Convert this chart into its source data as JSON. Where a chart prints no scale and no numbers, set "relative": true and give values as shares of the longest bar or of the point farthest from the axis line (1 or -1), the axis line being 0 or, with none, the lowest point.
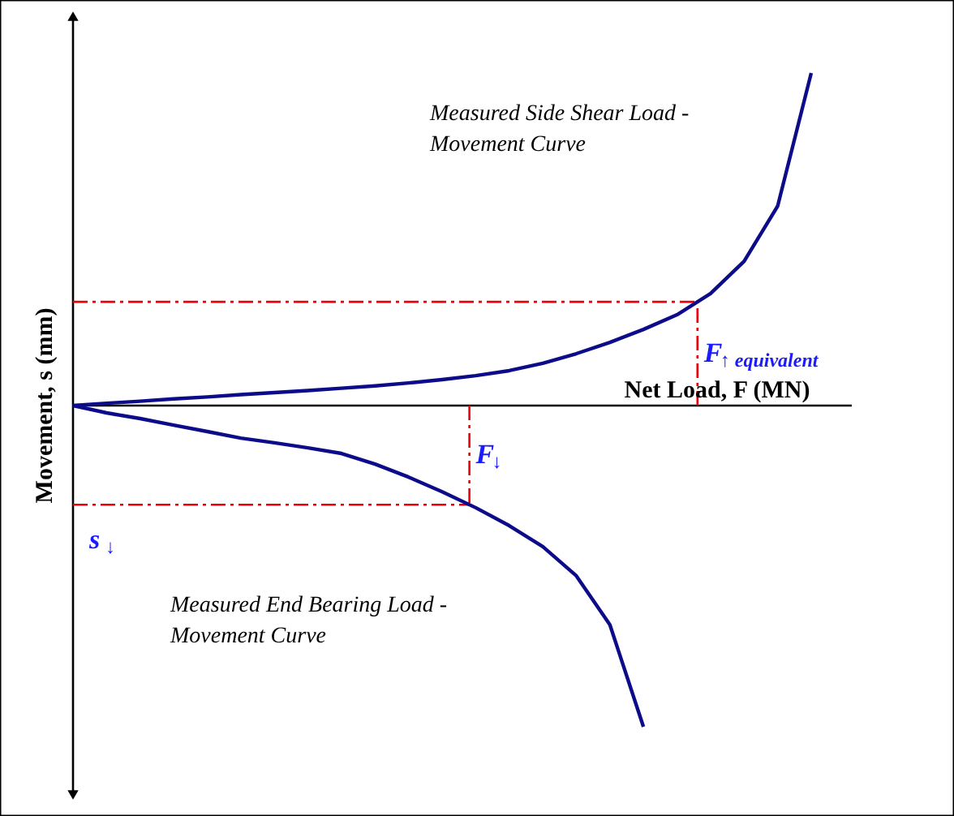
{
  "chart_data": {
    "type": "line",
    "relative": true,
    "xlabel": "Net Load, F (MN)",
    "ylabel": "Movement, s (mm)",
    "annotations": [
      "Measured Side Shear Load -\nMovement Curve",
      "Measured End Bearing Load -\nMovement Curve",
      "F$_{↑ equivalent}$",
      "F$_{↓}$"
    ],
    "categories": [
      null,
      null,
      null,
      null,
      null,
      null,
      null,
      null,
      null,
      null,
      null,
      null,
      null,
      null,
      null,
      null,
      null,
      null,
      null,
      null,
      null,
      null,
      null
    ],
    "series": [
      {
        "color": "#0c0c8a",
        "values": [
          0,
          0.007,
          0.013,
          0.02,
          0.026,
          0.033,
          0.039,
          0.045,
          0.052,
          0.059,
          0.068,
          0.078,
          0.09,
          0.105,
          0.127,
          0.156,
          0.19,
          0.229,
          0.273,
          0.337,
          0.434,
          0.6,
          1
        ]
      },
      {
        "color": "#0c0c8a",
        "values": [
          0,
          -0.022,
          -0.039,
          -0.059,
          -0.078,
          -0.098,
          -0.112,
          -0.127,
          -0.144,
          -0.176,
          -0.215,
          -0.259,
          -0.307,
          -0.361,
          -0.424,
          -0.512,
          -0.659,
          -0.966,
          null,
          null,
          null,
          null,
          null
        ]
      }
    ],
    "ref_lines": [
      {
        "axis": "y",
        "value": 0.312,
        "color": "#e8000b",
        "line_style": "dashdot"
      },
      {
        "axis": "y",
        "value": -0.298,
        "label": "s$_{↓}$",
        "color": "#e8000b",
        "line_style": "dashdot"
      }
    ]
  }
}
